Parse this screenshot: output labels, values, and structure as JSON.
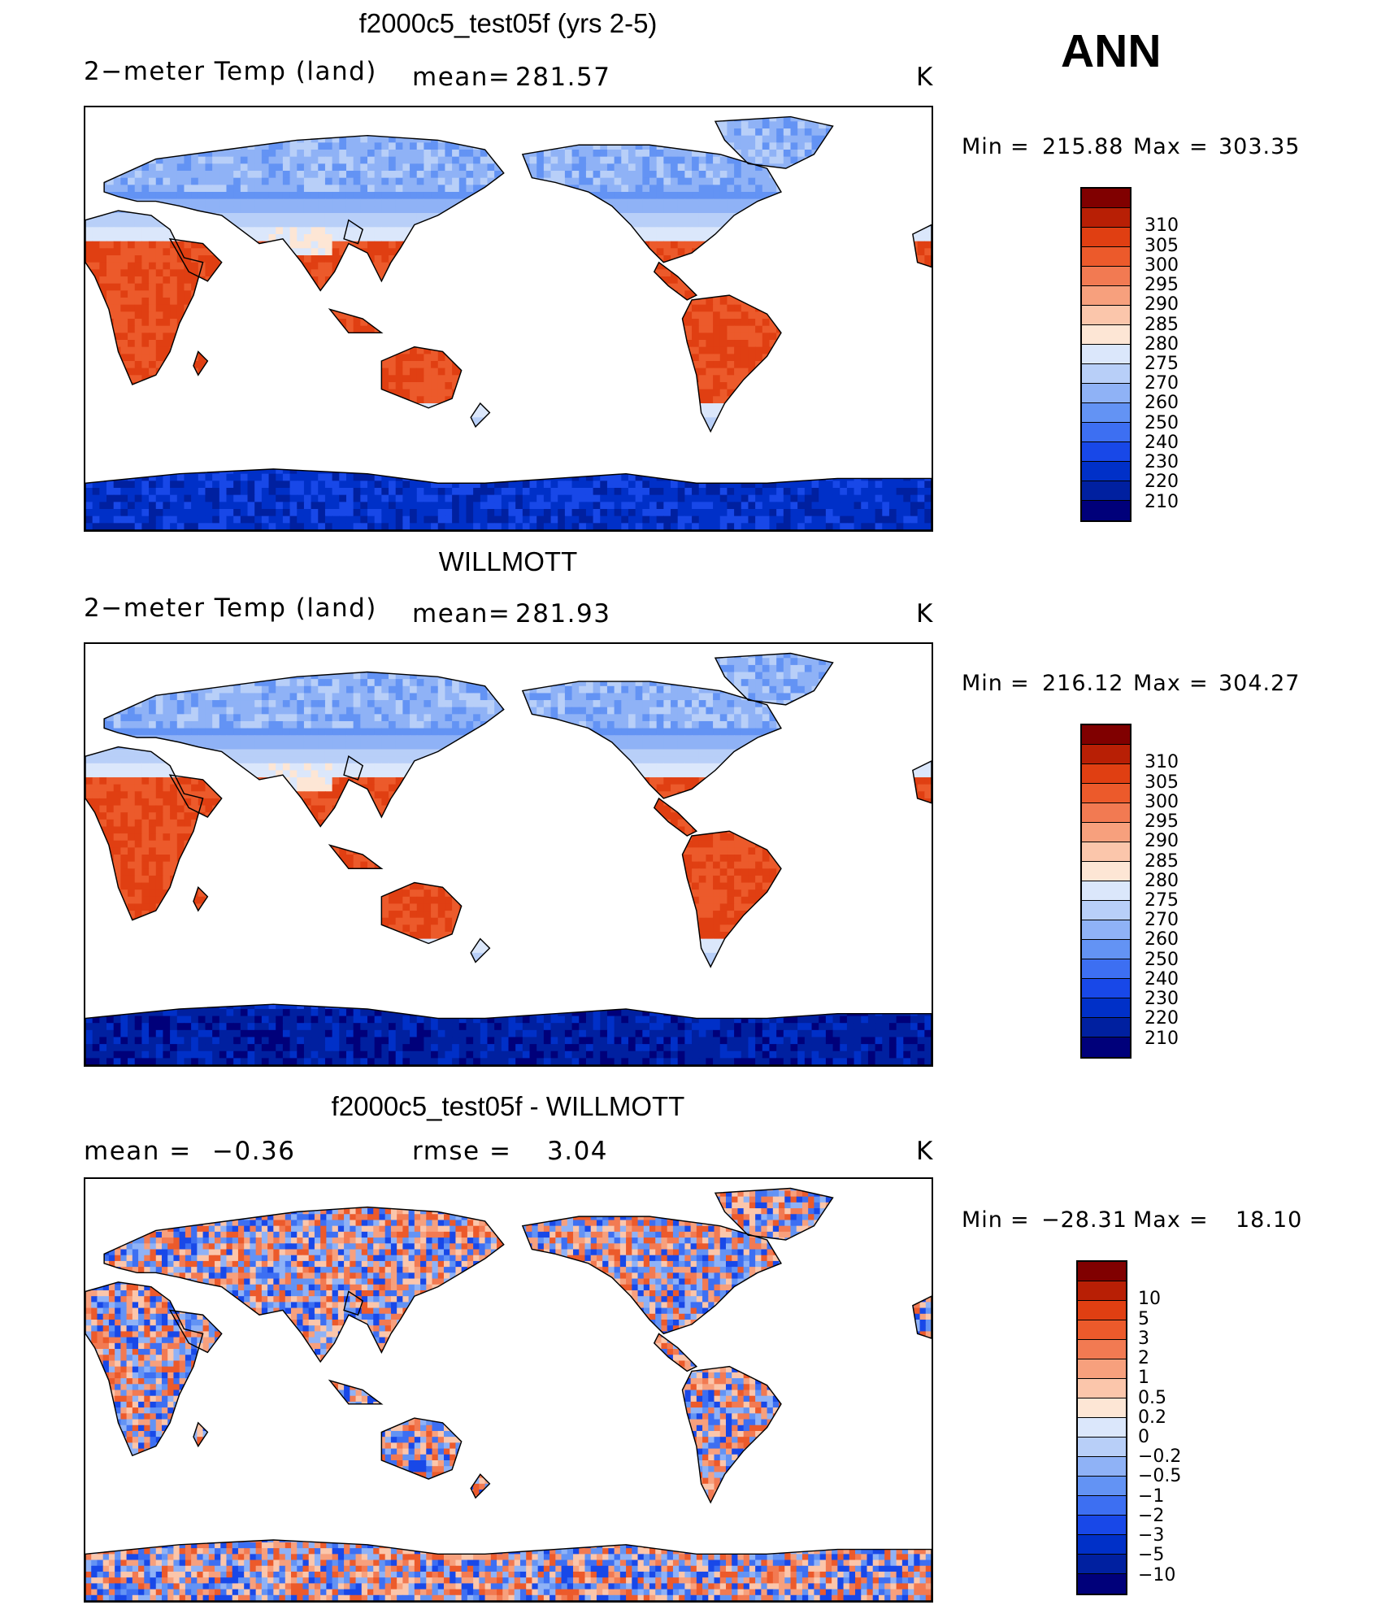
{
  "season": "ANN",
  "colors": {
    "abs_scale": [
      "#00007a",
      "#0020a0",
      "#0030c8",
      "#1848e8",
      "#3d6ff2",
      "#6393f4",
      "#8fb2f6",
      "#b8cff8",
      "#dbe7fb",
      "#fde6d5",
      "#fbc6ab",
      "#f7a07d",
      "#f27a52",
      "#ec5a2b",
      "#e03f12",
      "#b81f05",
      "#800000"
    ],
    "diff_scale": [
      "#00007a",
      "#0020a0",
      "#0030c8",
      "#1848e8",
      "#3d6ff2",
      "#6393f4",
      "#8fb2f6",
      "#b8cff8",
      "#dbe7fb",
      "#fde6d5",
      "#fbc6ab",
      "#f7a07d",
      "#f27a52",
      "#ec5a2b",
      "#e03f12",
      "#b81f05",
      "#800000"
    ]
  },
  "panels": [
    {
      "title": "f2000c5_test05f (yrs 2-5)",
      "variable": "2−meter Temp (land)",
      "stat1_label": "mean=",
      "stat1_value": "281.57",
      "stat2_label": "",
      "stat2_value": "",
      "units": "K",
      "min_label": "Min",
      "min_value": "215.88",
      "max_label": "Max",
      "max_value": "303.35",
      "colorbar_labels": [
        "310",
        "305",
        "300",
        "295",
        "290",
        "285",
        "280",
        "275",
        "270",
        "260",
        "250",
        "240",
        "230",
        "220",
        "210"
      ],
      "field_type": "absolute_model"
    },
    {
      "title": "WILLMOTT",
      "variable": "2−meter Temp (land)",
      "stat1_label": "mean=",
      "stat1_value": "281.93",
      "stat2_label": "",
      "stat2_value": "",
      "units": "K",
      "min_label": "Min",
      "min_value": "216.12",
      "max_label": "Max",
      "max_value": "304.27",
      "colorbar_labels": [
        "310",
        "305",
        "300",
        "295",
        "290",
        "285",
        "280",
        "275",
        "270",
        "260",
        "250",
        "240",
        "230",
        "220",
        "210"
      ],
      "field_type": "absolute_obs"
    },
    {
      "title": "f2000c5_test05f - WILLMOTT",
      "variable": "",
      "stat1_label": "mean =",
      "stat1_value": "−0.36",
      "stat2_label": "rmse =",
      "stat2_value": "3.04",
      "units": "K",
      "min_label": "Min",
      "min_value": "−28.31",
      "max_label": "Max",
      "max_value": "18.10",
      "colorbar_labels": [
        "10",
        "5",
        "3",
        "2",
        "1",
        "0.5",
        "0.2",
        "0",
        "−0.2",
        "−0.5",
        "−1",
        "−2",
        "−3",
        "−5",
        "−10"
      ],
      "field_type": "difference"
    }
  ]
}
